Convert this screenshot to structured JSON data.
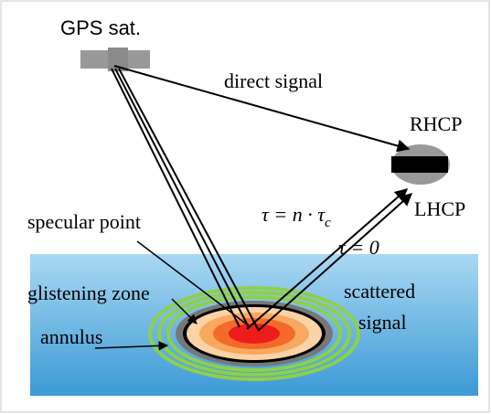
{
  "satellite": "GPS sat.",
  "direct_signal": "direct signal",
  "rhcp": "RHCP",
  "lhcp": "LHCP",
  "tau_n": {
    "main": "τ = n · τ",
    "sub": "c"
  },
  "tau_0": "τ = 0",
  "specular_point": "specular point",
  "glistening_zone": "glistening zone",
  "annulus": "annulus",
  "scattered_signal": [
    "scattered",
    "signal"
  ]
}
